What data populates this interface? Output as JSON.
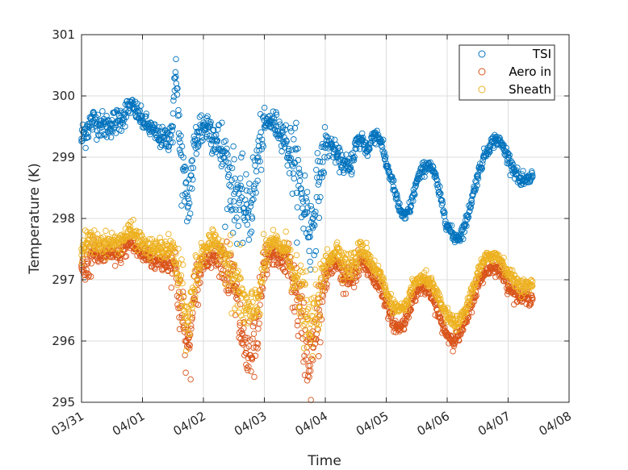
{
  "chart_data": {
    "type": "scatter",
    "title": "",
    "xlabel": "Time",
    "ylabel": "Temperature (K)",
    "xlim": [
      0,
      8
    ],
    "ylim": [
      295,
      301
    ],
    "grid": true,
    "legend_position": "top-right",
    "x_ticks": [
      {
        "value": 0,
        "label": "03/31"
      },
      {
        "value": 1,
        "label": "04/01"
      },
      {
        "value": 2,
        "label": "04/02"
      },
      {
        "value": 3,
        "label": "04/03"
      },
      {
        "value": 4,
        "label": "04/04"
      },
      {
        "value": 5,
        "label": "04/05"
      },
      {
        "value": 6,
        "label": "04/06"
      },
      {
        "value": 7,
        "label": "04/07"
      },
      {
        "value": 8,
        "label": "04/08"
      }
    ],
    "y_ticks": [
      {
        "value": 295,
        "label": "295"
      },
      {
        "value": 296,
        "label": "296"
      },
      {
        "value": 297,
        "label": "297"
      },
      {
        "value": 298,
        "label": "298"
      },
      {
        "value": 299,
        "label": "299"
      },
      {
        "value": 300,
        "label": "300"
      },
      {
        "value": 301,
        "label": "301"
      }
    ],
    "series": [
      {
        "name": "TSI",
        "color": "#0072BD",
        "marker": "open-circle",
        "x": [
          0.0,
          0.1,
          0.2,
          0.3,
          0.4,
          0.5,
          0.6,
          0.7,
          0.8,
          0.9,
          1.0,
          1.1,
          1.2,
          1.3,
          1.4,
          1.5,
          1.55,
          1.6,
          1.7,
          1.75,
          1.8,
          1.9,
          2.0,
          2.1,
          2.2,
          2.3,
          2.4,
          2.5,
          2.6,
          2.7,
          2.8,
          2.9,
          3.0,
          3.1,
          3.2,
          3.3,
          3.4,
          3.5,
          3.6,
          3.7,
          3.75,
          3.8,
          3.9,
          4.0,
          4.1,
          4.2,
          4.3,
          4.4,
          4.5,
          4.6,
          4.7,
          4.8,
          4.9,
          5.0,
          5.1,
          5.2,
          5.3,
          5.4,
          5.5,
          5.6,
          5.7,
          5.8,
          5.9,
          6.0,
          6.1,
          6.2,
          6.3,
          6.4,
          6.5,
          6.6,
          6.7,
          6.8,
          6.9,
          7.0,
          7.1,
          7.2,
          7.3,
          7.4
        ],
        "y": [
          299.3,
          299.5,
          299.6,
          299.55,
          299.5,
          299.55,
          299.6,
          299.7,
          299.85,
          299.75,
          299.6,
          299.5,
          299.4,
          299.3,
          299.3,
          299.5,
          300.6,
          299.3,
          298.4,
          298.2,
          298.7,
          299.4,
          299.5,
          299.5,
          299.3,
          299.1,
          298.8,
          298.4,
          298.3,
          298.1,
          298.3,
          299.0,
          299.5,
          299.6,
          299.5,
          299.4,
          299.1,
          298.9,
          298.4,
          298.1,
          297.7,
          298.0,
          298.6,
          299.2,
          299.2,
          299.0,
          298.9,
          298.8,
          299.2,
          299.3,
          299.1,
          299.4,
          299.3,
          298.9,
          298.6,
          298.2,
          298.0,
          298.2,
          298.6,
          298.8,
          298.9,
          298.7,
          298.3,
          297.9,
          297.7,
          297.7,
          297.9,
          298.3,
          298.7,
          299.0,
          299.2,
          299.3,
          299.2,
          299.0,
          298.8,
          298.6,
          298.6,
          298.7
        ],
        "spread": [
          0.25,
          0.25,
          0.2,
          0.2,
          0.2,
          0.2,
          0.2,
          0.2,
          0.15,
          0.15,
          0.15,
          0.15,
          0.15,
          0.15,
          0.2,
          0.3,
          0.3,
          0.6,
          0.5,
          0.5,
          0.5,
          0.4,
          0.3,
          0.3,
          0.3,
          0.5,
          0.6,
          0.6,
          0.6,
          0.5,
          0.6,
          0.6,
          0.2,
          0.2,
          0.2,
          0.2,
          0.4,
          0.6,
          0.6,
          0.7,
          0.6,
          0.6,
          0.5,
          0.3,
          0.15,
          0.15,
          0.15,
          0.2,
          0.15,
          0.15,
          0.15,
          0.15,
          0.1,
          0.1,
          0.1,
          0.1,
          0.1,
          0.1,
          0.1,
          0.1,
          0.1,
          0.1,
          0.1,
          0.1,
          0.1,
          0.1,
          0.1,
          0.1,
          0.1,
          0.1,
          0.1,
          0.1,
          0.1,
          0.1,
          0.1,
          0.1,
          0.1,
          0.1
        ]
      },
      {
        "name": "Aero in",
        "color": "#D95319",
        "marker": "open-circle",
        "x": [
          0.0,
          0.1,
          0.2,
          0.3,
          0.4,
          0.5,
          0.6,
          0.7,
          0.8,
          0.9,
          1.0,
          1.1,
          1.2,
          1.3,
          1.4,
          1.5,
          1.6,
          1.7,
          1.75,
          1.8,
          1.9,
          2.0,
          2.1,
          2.2,
          2.3,
          2.4,
          2.5,
          2.6,
          2.7,
          2.8,
          2.9,
          3.0,
          3.1,
          3.2,
          3.3,
          3.4,
          3.5,
          3.6,
          3.7,
          3.75,
          3.8,
          3.9,
          4.0,
          4.1,
          4.2,
          4.3,
          4.4,
          4.5,
          4.6,
          4.7,
          4.8,
          4.9,
          5.0,
          5.1,
          5.2,
          5.3,
          5.4,
          5.5,
          5.6,
          5.7,
          5.8,
          5.9,
          6.0,
          6.1,
          6.2,
          6.3,
          6.4,
          6.5,
          6.6,
          6.7,
          6.8,
          6.9,
          7.0,
          7.1,
          7.2,
          7.3,
          7.4
        ],
        "y": [
          297.2,
          297.3,
          297.4,
          297.4,
          297.4,
          297.4,
          297.4,
          297.5,
          297.6,
          297.5,
          297.4,
          297.4,
          297.3,
          297.3,
          297.3,
          297.3,
          296.8,
          296.0,
          295.9,
          296.2,
          297.0,
          297.3,
          297.4,
          297.4,
          297.4,
          297.1,
          296.9,
          296.3,
          295.8,
          295.7,
          296.2,
          297.2,
          297.4,
          297.4,
          297.3,
          297.3,
          296.8,
          296.4,
          295.9,
          295.6,
          295.9,
          296.4,
          297.0,
          297.2,
          297.3,
          297.0,
          297.0,
          297.1,
          297.3,
          297.2,
          297.0,
          296.9,
          296.6,
          296.3,
          296.2,
          296.3,
          296.6,
          296.8,
          296.9,
          296.8,
          296.6,
          296.3,
          296.1,
          296.0,
          296.1,
          296.3,
          296.6,
          296.9,
          297.1,
          297.2,
          297.2,
          297.1,
          296.9,
          296.8,
          296.7,
          296.7,
          296.7
        ],
        "spread": [
          0.25,
          0.3,
          0.2,
          0.15,
          0.15,
          0.15,
          0.15,
          0.15,
          0.15,
          0.15,
          0.15,
          0.15,
          0.15,
          0.15,
          0.2,
          0.3,
          0.6,
          0.5,
          0.4,
          0.5,
          0.4,
          0.2,
          0.15,
          0.15,
          0.3,
          0.5,
          0.5,
          0.6,
          0.5,
          0.4,
          0.5,
          0.4,
          0.15,
          0.15,
          0.15,
          0.3,
          0.5,
          0.6,
          0.6,
          0.5,
          0.6,
          0.5,
          0.4,
          0.15,
          0.15,
          0.2,
          0.2,
          0.3,
          0.15,
          0.15,
          0.15,
          0.1,
          0.1,
          0.1,
          0.1,
          0.1,
          0.1,
          0.1,
          0.1,
          0.1,
          0.1,
          0.1,
          0.1,
          0.1,
          0.1,
          0.1,
          0.1,
          0.1,
          0.1,
          0.1,
          0.1,
          0.1,
          0.1,
          0.1,
          0.1,
          0.1,
          0.1
        ]
      },
      {
        "name": "Sheath",
        "color": "#EDB120",
        "marker": "open-circle",
        "x": [
          0.0,
          0.1,
          0.2,
          0.3,
          0.4,
          0.5,
          0.6,
          0.7,
          0.8,
          0.9,
          1.0,
          1.1,
          1.2,
          1.3,
          1.4,
          1.5,
          1.6,
          1.7,
          1.75,
          1.8,
          1.9,
          2.0,
          2.1,
          2.2,
          2.3,
          2.4,
          2.5,
          2.6,
          2.7,
          2.8,
          2.9,
          3.0,
          3.1,
          3.2,
          3.3,
          3.4,
          3.5,
          3.6,
          3.7,
          3.75,
          3.8,
          3.9,
          4.0,
          4.1,
          4.2,
          4.3,
          4.4,
          4.5,
          4.6,
          4.7,
          4.8,
          4.9,
          5.0,
          5.1,
          5.2,
          5.3,
          5.4,
          5.5,
          5.6,
          5.7,
          5.8,
          5.9,
          6.0,
          6.1,
          6.2,
          6.3,
          6.4,
          6.5,
          6.6,
          6.7,
          6.8,
          6.9,
          7.0,
          7.1,
          7.2,
          7.3,
          7.4
        ],
        "y": [
          297.5,
          297.6,
          297.6,
          297.6,
          297.6,
          297.6,
          297.6,
          297.7,
          297.8,
          297.7,
          297.6,
          297.5,
          297.5,
          297.5,
          297.5,
          297.5,
          297.0,
          296.4,
          296.3,
          296.6,
          297.2,
          297.5,
          297.6,
          297.6,
          297.5,
          297.3,
          297.0,
          296.8,
          296.5,
          296.4,
          296.7,
          297.3,
          297.6,
          297.6,
          297.5,
          297.5,
          297.0,
          296.7,
          296.4,
          296.1,
          296.4,
          296.7,
          297.2,
          297.4,
          297.5,
          297.3,
          297.2,
          297.3,
          297.5,
          297.4,
          297.2,
          297.1,
          296.8,
          296.6,
          296.5,
          296.5,
          296.8,
          297.0,
          297.0,
          297.0,
          296.8,
          296.6,
          296.4,
          296.3,
          296.3,
          296.5,
          296.8,
          297.1,
          297.3,
          297.4,
          297.4,
          297.3,
          297.1,
          297.0,
          296.9,
          296.9,
          296.9
        ],
        "spread": [
          0.2,
          0.2,
          0.2,
          0.15,
          0.15,
          0.15,
          0.15,
          0.15,
          0.15,
          0.15,
          0.15,
          0.15,
          0.15,
          0.15,
          0.15,
          0.2,
          0.5,
          0.4,
          0.4,
          0.4,
          0.4,
          0.2,
          0.15,
          0.15,
          0.2,
          0.4,
          0.5,
          0.5,
          0.4,
          0.4,
          0.4,
          0.3,
          0.15,
          0.15,
          0.15,
          0.3,
          0.4,
          0.5,
          0.5,
          0.4,
          0.5,
          0.4,
          0.3,
          0.15,
          0.15,
          0.2,
          0.2,
          0.25,
          0.15,
          0.15,
          0.15,
          0.1,
          0.1,
          0.1,
          0.1,
          0.1,
          0.1,
          0.1,
          0.1,
          0.1,
          0.1,
          0.1,
          0.1,
          0.1,
          0.1,
          0.1,
          0.1,
          0.1,
          0.1,
          0.1,
          0.1,
          0.1,
          0.1,
          0.1,
          0.1,
          0.1,
          0.1
        ]
      }
    ]
  }
}
